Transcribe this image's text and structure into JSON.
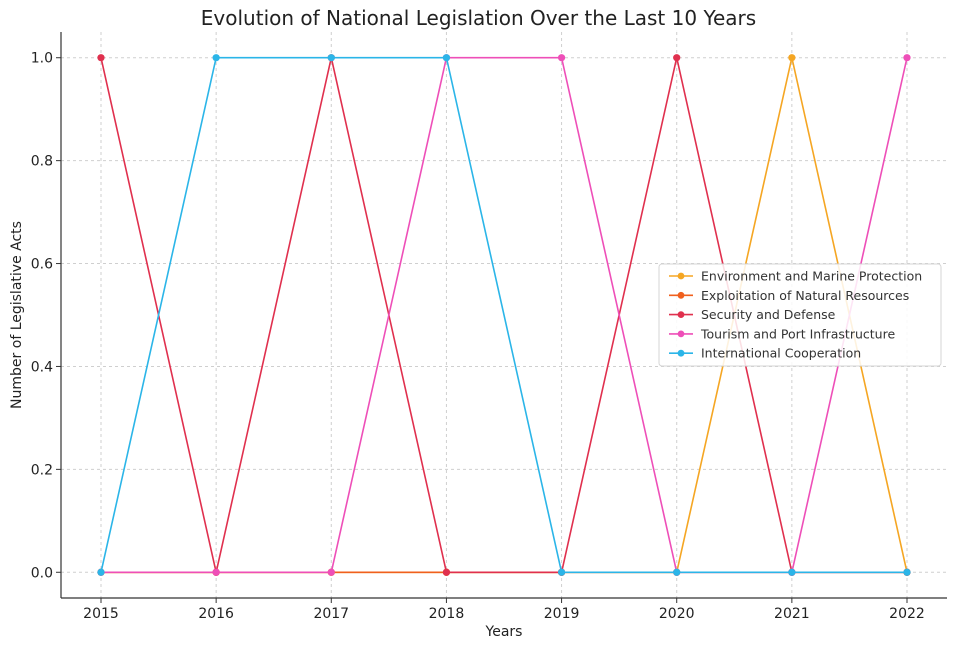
{
  "chart_data": {
    "type": "line",
    "title": "Evolution of National Legislation Over the Last 10 Years",
    "xlabel": "Years",
    "ylabel": "Number of Legislative Acts",
    "x": [
      2015,
      2016,
      2017,
      2018,
      2019,
      2020,
      2021,
      2022
    ],
    "xticks": [
      "2015",
      "2016",
      "2017",
      "2018",
      "2019",
      "2020",
      "2021",
      "2022"
    ],
    "yticks": [
      "0.0",
      "0.2",
      "0.4",
      "0.6",
      "0.8",
      "1.0"
    ],
    "ylim": [
      -0.05,
      1.05
    ],
    "grid": true,
    "legend_position": "center-right",
    "series": [
      {
        "name": "Environment and Marine Protection",
        "color": "#F5A623",
        "values": [
          0,
          0,
          0,
          0,
          0,
          0,
          1,
          0
        ]
      },
      {
        "name": "Exploitation of Natural Resources",
        "color": "#F0601E",
        "values": [
          0,
          0,
          0,
          0,
          0,
          0,
          0,
          0
        ]
      },
      {
        "name": "Security and Defense",
        "color": "#E0304E",
        "values": [
          1,
          0,
          1,
          0,
          0,
          1,
          0,
          0
        ]
      },
      {
        "name": "Tourism and Port Infrastructure",
        "color": "#EE4FB8",
        "values": [
          0,
          0,
          0,
          1,
          1,
          0,
          0,
          1
        ]
      },
      {
        "name": "International Cooperation",
        "color": "#2BB5E8",
        "values": [
          0,
          1,
          1,
          1,
          0,
          0,
          0,
          0
        ]
      }
    ]
  }
}
